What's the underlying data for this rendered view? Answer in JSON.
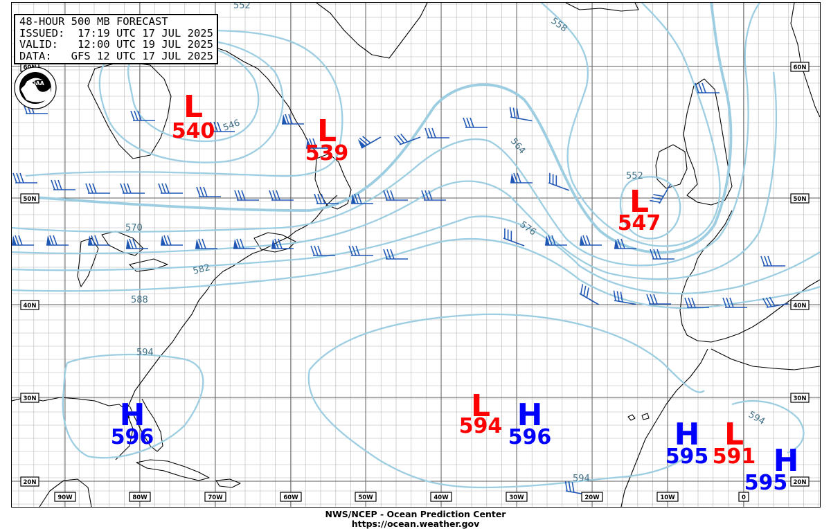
{
  "header": {
    "title": "48-HOUR 500 MB FORECAST",
    "issued_label": "ISSUED:",
    "issued_value": "17:19 UTC 17 JUL 2025",
    "valid_label": "VALID:",
    "valid_value": "12:00 UTC 19 JUL 2025",
    "data_label": "DATA:",
    "data_value": "GFS 12 UTC 17 JUL 2025"
  },
  "logo": {
    "text": "NOAA",
    "icon": "noaa-logo-icon"
  },
  "footer": {
    "agency": "NWS/NCEP - Ocean Prediction Center",
    "url": "https://ocean.weather.gov"
  },
  "colors": {
    "contour": "#9ccde1",
    "contour_label": "#3f6f85",
    "high": "#0000ff",
    "low": "#ff0000",
    "coast": "#000000",
    "grid": "#a8a8a8",
    "grid_major": "#6e6e6e",
    "barb": "#1f57b5"
  },
  "map": {
    "longitude_labels": [
      "90W",
      "80W",
      "70W",
      "60W",
      "50W",
      "40W",
      "30W",
      "20W",
      "10W",
      "0"
    ],
    "latitude_labels_left": [
      "60N",
      "50N",
      "40N",
      "30N",
      "20N"
    ],
    "latitude_labels_right": [
      "60N",
      "50N",
      "40N",
      "30N",
      "20N"
    ],
    "contour_labels": [
      "552",
      "558",
      "564",
      "570",
      "576",
      "582",
      "588",
      "594",
      "594",
      "594",
      "546",
      "552"
    ],
    "pressure_centers": [
      {
        "type": "L",
        "value": "540"
      },
      {
        "type": "L",
        "value": "539"
      },
      {
        "type": "L",
        "value": "547"
      },
      {
        "type": "H",
        "value": "596"
      },
      {
        "type": "L",
        "value": "594"
      },
      {
        "type": "H",
        "value": "596"
      },
      {
        "type": "H",
        "value": "595"
      },
      {
        "type": "L",
        "value": "591"
      },
      {
        "type": "H",
        "value": "595"
      }
    ]
  }
}
